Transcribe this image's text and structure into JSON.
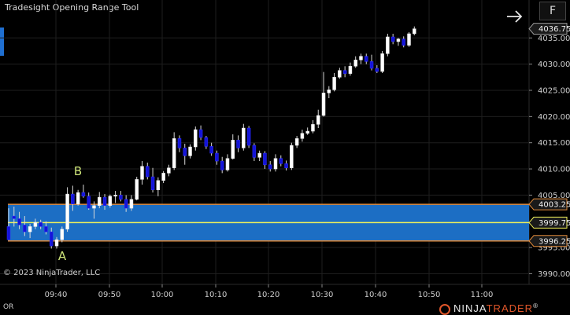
{
  "window": {
    "title": "Tradesight Opening Range Tool",
    "f_button": "F"
  },
  "footer": {
    "copyright": "© 2023 NinjaTrader, LLC",
    "or_label": "OR",
    "logo_ninja": "NINJA",
    "logo_trader": "TRADER",
    "logo_reg": "®"
  },
  "annotations": {
    "a": "A",
    "b": "B"
  },
  "colors": {
    "range_fill": "#1c6ec4",
    "range_border": "#e08a3a",
    "midline": "#f2f25a",
    "up_candle": "#ffffff",
    "down_candle": "#1414d8",
    "label_green": "#cfe67a"
  },
  "chart_data": {
    "type": "candlestick",
    "y_ticks": [
      "4035.00",
      "4030.00",
      "4025.00",
      "4020.00",
      "4015.00",
      "4010.00",
      "4005.00",
      "3995.00",
      "3990.00"
    ],
    "y_tick_values": [
      4035,
      4030,
      4025,
      4020,
      4015,
      4010,
      4005,
      3995,
      3990
    ],
    "x_ticks": [
      "09:40",
      "09:50",
      "10:00",
      "10:10",
      "10:20",
      "10:30",
      "10:40",
      "10:50",
      "11:00"
    ],
    "price_labels": {
      "last": "4036.75",
      "range_high": "4003.25",
      "range_mid": "3999.75",
      "range_low": "3996.25"
    },
    "opening_range": {
      "high": 4003.25,
      "mid": 3999.75,
      "low": 3996.25
    },
    "ylim": [
      3987.5,
      4039.5
    ],
    "candles": [
      [
        3999,
        4002.5,
        3997,
        3996.5
      ],
      [
        4001,
        4002.8,
        3999,
        4000.5
      ],
      [
        4000.5,
        4001.8,
        3998.5,
        3999.3
      ],
      [
        3999.3,
        4001,
        3997.2,
        3998
      ],
      [
        3998,
        3999.5,
        3996.8,
        3999
      ],
      [
        3999,
        4000.5,
        3998.5,
        3999.8
      ],
      [
        3999.8,
        4000.3,
        3998.5,
        3999
      ],
      [
        3999,
        4000,
        3997.5,
        3998
      ],
      [
        3998,
        3998.8,
        3994.8,
        3995.3
      ],
      [
        3995.3,
        3997,
        3994.8,
        3996.5
      ],
      [
        3996.5,
        3999,
        3996,
        3998.5
      ],
      [
        3998.5,
        4006.5,
        3998,
        4005.2
      ],
      [
        4005.2,
        4006.8,
        4002,
        4003.3
      ],
      [
        4003.3,
        4006,
        4003,
        4005.5
      ],
      [
        4005.5,
        4007,
        4004.5,
        4004.8
      ],
      [
        4004.8,
        4005.5,
        4002.2,
        4002.5
      ],
      [
        4002.5,
        4003.8,
        4000.5,
        4003
      ],
      [
        4003,
        4005.6,
        4002.5,
        4004.6
      ],
      [
        4004.6,
        4005.2,
        4002.2,
        4003
      ],
      [
        4003,
        4005.1,
        4002.6,
        4004.8
      ],
      [
        4004.8,
        4005.8,
        4003.5,
        4005
      ],
      [
        4005,
        4005.8,
        4003.8,
        4004.2
      ],
      [
        4004.2,
        4005,
        4001.8,
        4002.5
      ],
      [
        4002.5,
        4005,
        4002,
        4004.2
      ],
      [
        4004.2,
        4008.5,
        4004,
        4008
      ],
      [
        4008,
        4011.5,
        4007,
        4010.5
      ],
      [
        4010.5,
        4011.2,
        4008,
        4008.5
      ],
      [
        4008.5,
        4010.2,
        4005.5,
        4006
      ],
      [
        4006,
        4008.4,
        4004.8,
        4007.8
      ],
      [
        4007.8,
        4009.6,
        4007.3,
        4009.2
      ],
      [
        4009.2,
        4010.8,
        4008.6,
        4010.2
      ],
      [
        4010.2,
        4017,
        4009.8,
        4015.8
      ],
      [
        4015.8,
        4016.4,
        4013.2,
        4014
      ],
      [
        4014,
        4014.8,
        4010.8,
        4012.5
      ],
      [
        4012.5,
        4014.7,
        4012,
        4014.2
      ],
      [
        4014.2,
        4018.1,
        4013.5,
        4017.5
      ],
      [
        4017.5,
        4018.3,
        4015.5,
        4016
      ],
      [
        4016,
        4016.3,
        4013.8,
        4014.3
      ],
      [
        4014.3,
        4015,
        4012.5,
        4013
      ],
      [
        4013,
        4013.5,
        4010.8,
        4011.5
      ],
      [
        4011.5,
        4012.3,
        4009.2,
        4009.8
      ],
      [
        4009.8,
        4012.8,
        4009.5,
        4012
      ],
      [
        4012,
        4016.6,
        4011.8,
        4015.5
      ],
      [
        4015.5,
        4016.4,
        4013.2,
        4014
      ],
      [
        4014,
        4018.6,
        4013.5,
        4017.8
      ],
      [
        4017.8,
        4018.2,
        4014,
        4014.5
      ],
      [
        4014.5,
        4014.9,
        4011.5,
        4012.2
      ],
      [
        4012.2,
        4013.5,
        4011.5,
        4013
      ],
      [
        4013,
        4013.4,
        4010,
        4010.8
      ],
      [
        4010.8,
        4011.5,
        4009.5,
        4010
      ],
      [
        4010,
        4012.8,
        4009.5,
        4012
      ],
      [
        4012,
        4012.6,
        4010.5,
        4011
      ],
      [
        4011,
        4011.6,
        4009.7,
        4010.2
      ],
      [
        4010.2,
        4015,
        4009.8,
        4014.5
      ],
      [
        4014.5,
        4016.3,
        4014,
        4015.8
      ],
      [
        4015.8,
        4017.5,
        4015.2,
        4016.8
      ],
      [
        4016.8,
        4017.9,
        4016.5,
        4017.2
      ],
      [
        4017.2,
        4019.3,
        4016.8,
        4018.5
      ],
      [
        4018.5,
        4021.3,
        4017.8,
        4020.2
      ],
      [
        4020.2,
        4028.5,
        4020,
        4024.5
      ],
      [
        4024.5,
        4025.8,
        4023.5,
        4025.1
      ],
      [
        4025.1,
        4028.3,
        4024.8,
        4027.5
      ],
      [
        4027.5,
        4029.3,
        4027.2,
        4028.8
      ],
      [
        4028.8,
        4029.6,
        4027.5,
        4028.2
      ],
      [
        4028.2,
        4030.3,
        4027.8,
        4029.6
      ],
      [
        4029.6,
        4031.5,
        4029.3,
        4030.8
      ],
      [
        4030.8,
        4032,
        4030,
        4031.5
      ],
      [
        4031.5,
        4032,
        4030,
        4030.5
      ],
      [
        4030.5,
        4031.8,
        4028.8,
        4029.2
      ],
      [
        4029.2,
        4029.8,
        4028.3,
        4028.6
      ],
      [
        4028.6,
        4032.5,
        4028.3,
        4032
      ],
      [
        4032,
        4035.8,
        4031.5,
        4035.2
      ],
      [
        4035.2,
        4035.8,
        4033.8,
        4034.3
      ],
      [
        4034.3,
        4035,
        4033.5,
        4034.8
      ],
      [
        4034.8,
        4035.3,
        4033.2,
        4033.6
      ],
      [
        4033.6,
        4036.1,
        4033.3,
        4035.8
      ],
      [
        4035.8,
        4037.2,
        4035.5,
        4036.75
      ]
    ]
  }
}
